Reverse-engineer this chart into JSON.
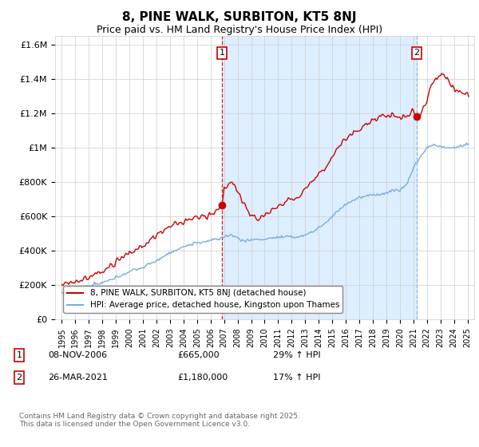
{
  "title": "8, PINE WALK, SURBITON, KT5 8NJ",
  "subtitle": "Price paid vs. HM Land Registry's House Price Index (HPI)",
  "legend_line1": "8, PINE WALK, SURBITON, KT5 8NJ (detached house)",
  "legend_line2": "HPI: Average price, detached house, Kingston upon Thames",
  "sale1_date": "08-NOV-2006",
  "sale1_price": "£665,000",
  "sale1_info": "29% ↑ HPI",
  "sale2_date": "26-MAR-2021",
  "sale2_price": "£1,180,000",
  "sale2_info": "17% ↑ HPI",
  "footer": "Contains HM Land Registry data © Crown copyright and database right 2025.\nThis data is licensed under the Open Government Licence v3.0.",
  "red_color": "#cc0000",
  "blue_color": "#7aade0",
  "shade_color": "#ddeeff",
  "marker1_x": 2006.85,
  "marker1_y": 665000,
  "marker2_x": 2021.25,
  "marker2_y": 1180000,
  "ylim": [
    0,
    1650000
  ],
  "xlim": [
    1994.5,
    2025.5
  ],
  "yticks": [
    0,
    200000,
    400000,
    600000,
    800000,
    1000000,
    1200000,
    1400000,
    1600000
  ],
  "ylabels": [
    "£0",
    "£200K",
    "£400K",
    "£600K",
    "£800K",
    "£1M",
    "£1.2M",
    "£1.4M",
    "£1.6M"
  ]
}
